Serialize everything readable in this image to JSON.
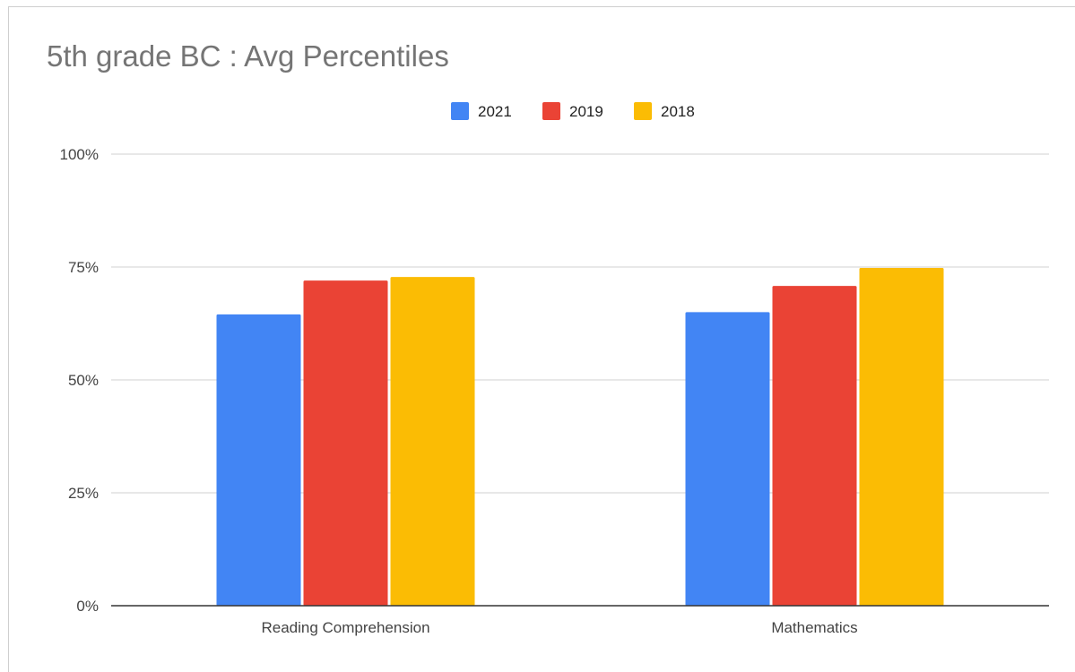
{
  "chart_data": {
    "type": "bar",
    "title": "5th grade BC : Avg Percentiles",
    "xlabel": "",
    "ylabel": "",
    "categories": [
      "Reading Comprehension",
      "Mathematics"
    ],
    "series": [
      {
        "name": "2021",
        "color": "#4285F4",
        "values": [
          64.5,
          65.0
        ]
      },
      {
        "name": "2019",
        "color": "#EA4335",
        "values": [
          72.0,
          70.8
        ]
      },
      {
        "name": "2018",
        "color": "#FBBC04",
        "values": [
          72.8,
          74.8
        ]
      }
    ],
    "ylim": [
      0,
      100
    ],
    "yticks": [
      0,
      25,
      50,
      75,
      100
    ],
    "ytick_labels": [
      "0%",
      "25%",
      "50%",
      "75%",
      "100%"
    ],
    "grid": true,
    "legend_position": "top-center"
  }
}
